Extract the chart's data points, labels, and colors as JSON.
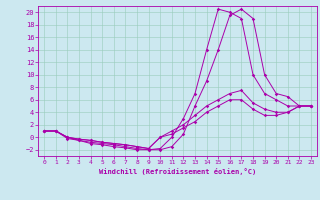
{
  "background_color": "#cce8f0",
  "line_color": "#aa00aa",
  "grid_color": "#99ccbb",
  "xlim": [
    -0.5,
    23.5
  ],
  "ylim": [
    -3,
    21
  ],
  "xticks": [
    0,
    1,
    2,
    3,
    4,
    5,
    6,
    7,
    8,
    9,
    10,
    11,
    12,
    13,
    14,
    15,
    16,
    17,
    18,
    19,
    20,
    21,
    22,
    23
  ],
  "yticks": [
    -2,
    0,
    2,
    4,
    6,
    8,
    10,
    12,
    14,
    16,
    18,
    20
  ],
  "xlabel": "Windchill (Refroidissement éolien,°C)",
  "line1_x": [
    0,
    1,
    2,
    3,
    4,
    5,
    6,
    7,
    8,
    9,
    10,
    11,
    12,
    13,
    14,
    15,
    16,
    17,
    18,
    19,
    20,
    21,
    22,
    23
  ],
  "line1_y": [
    1,
    1,
    0,
    -0.5,
    -1,
    -1.2,
    -1.5,
    -1.7,
    -2,
    -2,
    -2,
    -1.5,
    0.5,
    5,
    9,
    14,
    19.5,
    20.5,
    19,
    10,
    7,
    6.5,
    5,
    5
  ],
  "line2_x": [
    0,
    1,
    2,
    3,
    4,
    5,
    6,
    7,
    8,
    9,
    10,
    11,
    12,
    13,
    14,
    15,
    16,
    17,
    18,
    19,
    20,
    21,
    22,
    23
  ],
  "line2_y": [
    1,
    1,
    -0.2,
    -0.5,
    -0.8,
    -1,
    -1.2,
    -1.5,
    -1.8,
    -2,
    -1.8,
    0,
    3,
    7,
    14,
    20.5,
    20,
    19,
    10,
    7,
    6,
    5,
    5,
    5
  ],
  "line3_x": [
    0,
    1,
    2,
    3,
    4,
    5,
    6,
    7,
    8,
    9,
    10,
    11,
    12,
    13,
    14,
    15,
    16,
    17,
    18,
    19,
    20,
    21,
    22,
    23
  ],
  "line3_y": [
    1,
    1,
    0,
    -0.3,
    -0.5,
    -0.8,
    -1,
    -1.2,
    -1.5,
    -1.8,
    0,
    1,
    2,
    3.5,
    5,
    6,
    7,
    7.5,
    5.5,
    4.5,
    4,
    4,
    5,
    5
  ],
  "line4_x": [
    0,
    1,
    2,
    3,
    4,
    5,
    6,
    7,
    8,
    9,
    10,
    11,
    12,
    13,
    14,
    15,
    16,
    17,
    18,
    19,
    20,
    21,
    22,
    23
  ],
  "line4_y": [
    1,
    1,
    0,
    -0.3,
    -0.5,
    -0.8,
    -1,
    -1.2,
    -1.5,
    -1.8,
    0,
    0.5,
    1.5,
    2.5,
    4,
    5,
    6,
    6,
    4.5,
    3.5,
    3.5,
    4,
    5,
    5
  ]
}
